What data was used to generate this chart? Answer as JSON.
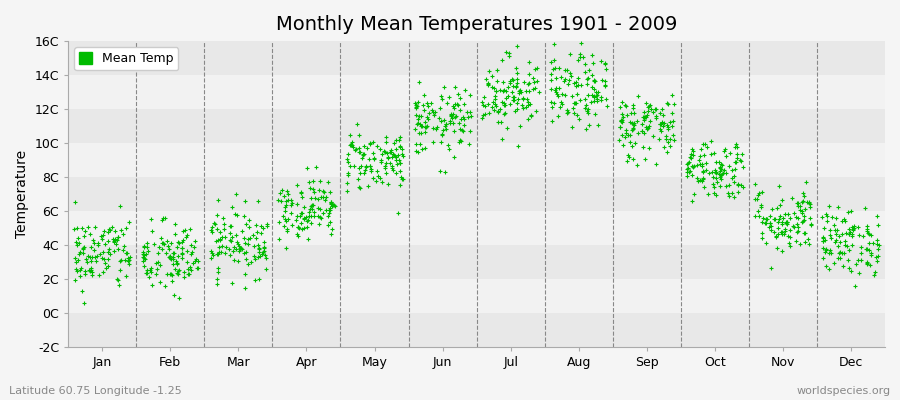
{
  "title": "Monthly Mean Temperatures 1901 - 2009",
  "ylabel": "Temperature",
  "xlabel_months": [
    "Jan",
    "Feb",
    "Mar",
    "Apr",
    "May",
    "Jun",
    "Jul",
    "Aug",
    "Sep",
    "Oct",
    "Nov",
    "Dec"
  ],
  "legend_label": "Mean Temp",
  "dot_color": "#00bb00",
  "ylim": [
    -2,
    16
  ],
  "yticks": [
    -2,
    0,
    2,
    4,
    6,
    8,
    10,
    12,
    14,
    16
  ],
  "ytick_labels": [
    "-2C",
    "0C",
    "2C",
    "4C",
    "6C",
    "8C",
    "10C",
    "12C",
    "14C",
    "16C"
  ],
  "footer_left": "Latitude 60.75 Longitude -1.25",
  "footer_right": "worldspecies.org",
  "monthly_means": [
    3.5,
    3.2,
    4.2,
    6.2,
    9.0,
    11.2,
    13.0,
    13.0,
    11.0,
    8.5,
    5.5,
    4.2
  ],
  "monthly_stds": [
    1.1,
    1.1,
    1.0,
    0.9,
    0.9,
    1.0,
    1.1,
    1.1,
    1.0,
    0.9,
    1.0,
    1.0
  ],
  "n_years": 109,
  "marker_size": 5,
  "dpi": 100,
  "figsize": [
    9.0,
    4.0
  ],
  "band_colors": [
    "#e8e8e8",
    "#f2f2f2"
  ],
  "fig_bg": "#f5f5f5"
}
